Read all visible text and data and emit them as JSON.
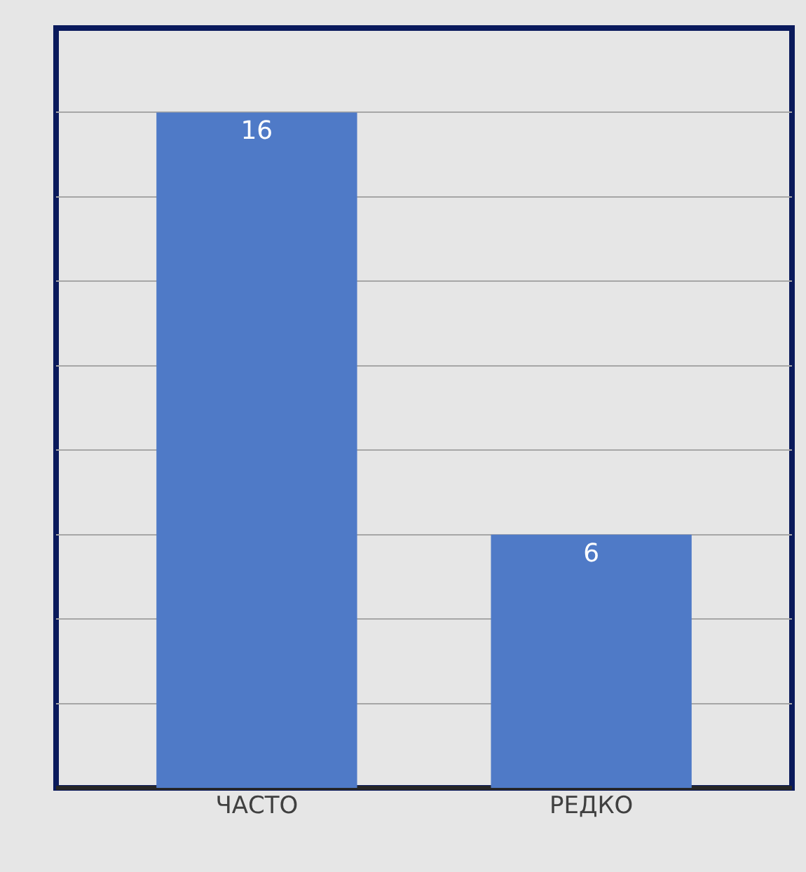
{
  "chart_data": {
    "type": "bar",
    "categories": [
      "ЧАСТО",
      "РЕДКО"
    ],
    "values": [
      16,
      6
    ],
    "color": "#4f7ac7",
    "ylim": [
      0,
      18
    ],
    "yticks": [
      {
        "value": 0,
        "label": null
      },
      {
        "value": 2,
        "label": null
      },
      {
        "value": 4,
        "label": null
      },
      {
        "value": 6,
        "label": null
      },
      {
        "value": 8,
        "label": null
      },
      {
        "value": 10,
        "label": null
      },
      {
        "value": 12,
        "label": null
      },
      {
        "value": 14,
        "label": null
      },
      {
        "value": 16,
        "label": null
      },
      {
        "value": 18,
        "label": null
      }
    ],
    "tick_labels": "x",
    "grid": "y",
    "data_labels": true
  }
}
